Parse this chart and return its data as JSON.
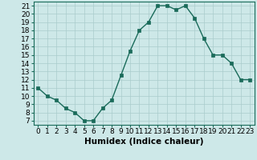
{
  "x": [
    0,
    1,
    2,
    3,
    4,
    5,
    6,
    7,
    8,
    9,
    10,
    11,
    12,
    13,
    14,
    15,
    16,
    17,
    18,
    19,
    20,
    21,
    22,
    23
  ],
  "y": [
    11,
    10,
    9.5,
    8.5,
    8,
    7,
    7,
    8.5,
    9.5,
    12.5,
    15.5,
    18,
    19,
    21,
    21,
    20.5,
    21,
    19.5,
    17,
    15,
    15,
    14,
    12,
    12
  ],
  "line_color": "#1a6b5a",
  "bg_color": "#cde8e8",
  "grid_color": "#aacccc",
  "xlabel": "Humidex (Indice chaleur)",
  "xlabel_fontsize": 7.5,
  "tick_fontsize": 6.5,
  "ylim": [
    6.5,
    21.5
  ],
  "xlim": [
    -0.5,
    23.5
  ],
  "yticks": [
    7,
    8,
    9,
    10,
    11,
    12,
    13,
    14,
    15,
    16,
    17,
    18,
    19,
    20,
    21
  ],
  "xtick_labels": [
    "0",
    "1",
    "2",
    "3",
    "4",
    "5",
    "6",
    "7",
    "8",
    "9",
    "10",
    "11",
    "12",
    "13",
    "14",
    "15",
    "16",
    "17",
    "18",
    "19",
    "20",
    "21",
    "22",
    "23"
  ],
  "marker_size": 2.5,
  "line_width": 1.0
}
